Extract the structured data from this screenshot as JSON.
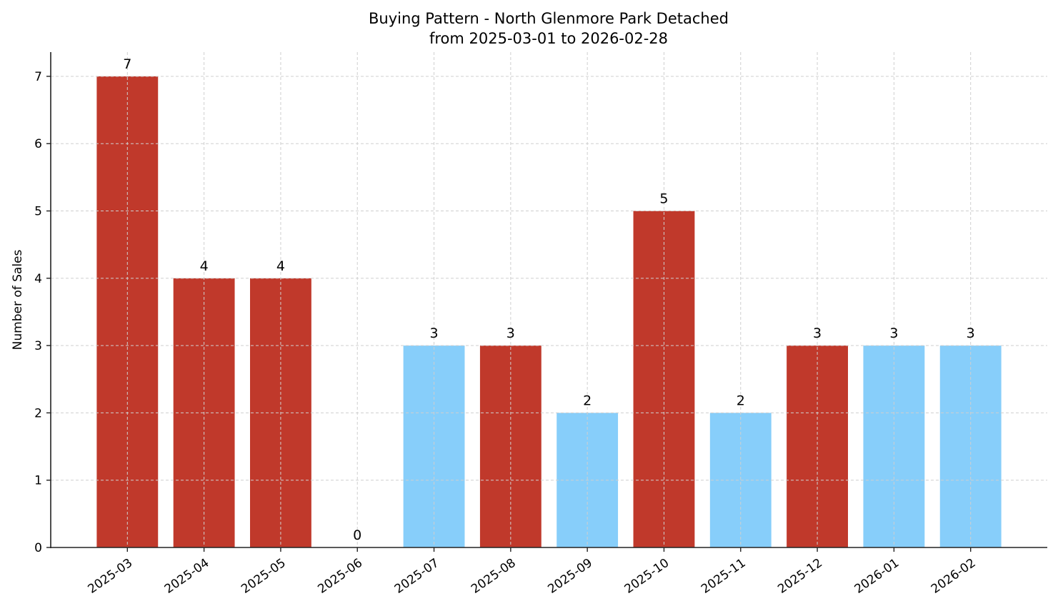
{
  "chart_data": {
    "type": "bar",
    "title": "Buying Pattern - North Glenmore Park Detached",
    "subtitle": "from 2025-03-01 to 2026-02-28",
    "xlabel": "",
    "ylabel": "Number of Sales",
    "categories": [
      "2025-03",
      "2025-04",
      "2025-05",
      "2025-06",
      "2025-07",
      "2025-08",
      "2025-09",
      "2025-10",
      "2025-11",
      "2025-12",
      "2026-01",
      "2026-02"
    ],
    "values": [
      7,
      4,
      4,
      0,
      3,
      3,
      2,
      5,
      2,
      3,
      3,
      3
    ],
    "bar_colors": [
      "#c0392b",
      "#c0392b",
      "#c0392b",
      "#87cefa",
      "#87cefa",
      "#c0392b",
      "#87cefa",
      "#c0392b",
      "#87cefa",
      "#c0392b",
      "#87cefa",
      "#87cefa"
    ],
    "yticks": [
      0,
      1,
      2,
      3,
      4,
      5,
      6,
      7
    ],
    "ylim": [
      0,
      7.36
    ],
    "grid": true,
    "data_labels": true
  }
}
